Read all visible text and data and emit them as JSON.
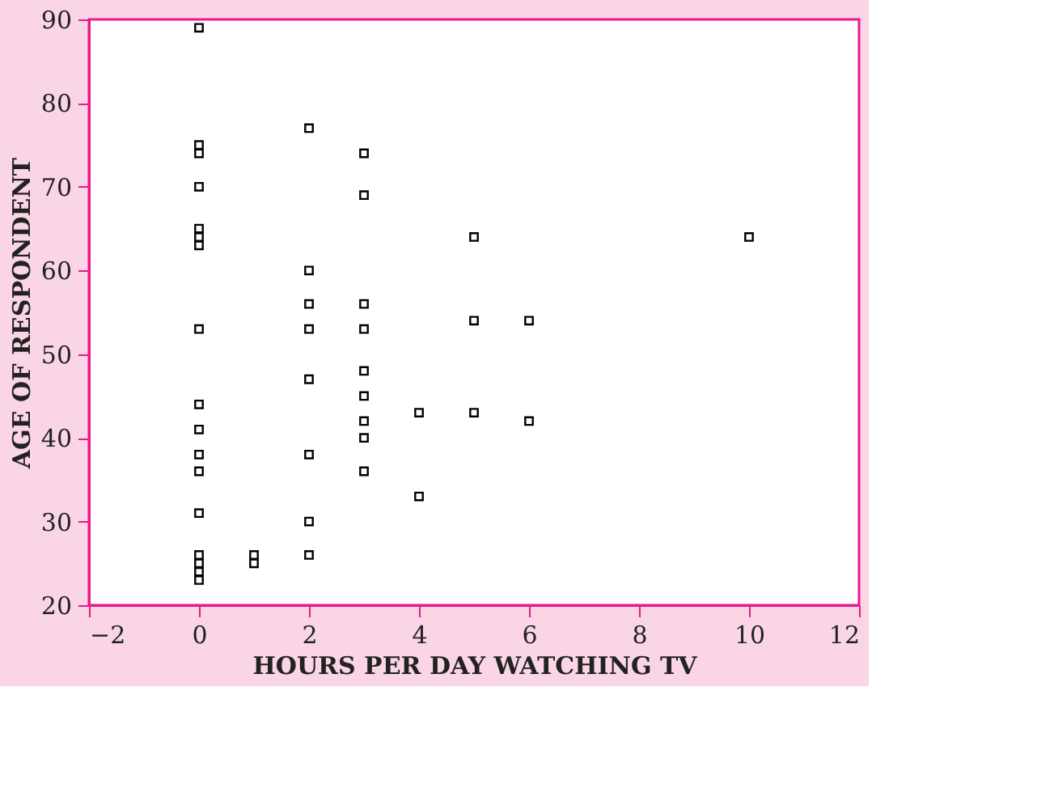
{
  "chart_data": {
    "type": "scatter",
    "xlabel": "HOURS PER DAY WATCHING TV",
    "ylabel": "AGE OF RESPONDENT",
    "x": [
      0,
      0,
      0,
      0,
      0,
      0,
      0,
      0,
      0,
      0,
      0,
      0,
      0,
      0,
      0,
      0,
      0,
      1,
      1,
      2,
      2,
      2,
      2,
      2,
      2,
      2,
      2,
      3,
      3,
      3,
      3,
      3,
      3,
      3,
      3,
      3,
      4,
      4,
      5,
      5,
      5,
      6,
      6,
      10
    ],
    "series": [
      {
        "color": "#000000",
        "values": [
          89,
          75,
          74,
          70,
          65,
          64,
          63,
          53,
          44,
          41,
          38,
          36,
          31,
          26,
          25,
          24,
          23,
          26,
          25,
          77,
          60,
          56,
          53,
          47,
          38,
          30,
          26,
          74,
          69,
          56,
          53,
          48,
          45,
          42,
          40,
          36,
          43,
          33,
          64,
          54,
          43,
          54,
          42,
          64
        ]
      }
    ],
    "xlim": [
      -2,
      12
    ],
    "xticks": [
      -2,
      0,
      2,
      4,
      6,
      8,
      10,
      12
    ],
    "ylim": [
      20,
      90
    ],
    "yticks": [
      20,
      30,
      40,
      50,
      60,
      70,
      80,
      90
    ],
    "marker": "square",
    "grid": false,
    "legend": false
  }
}
